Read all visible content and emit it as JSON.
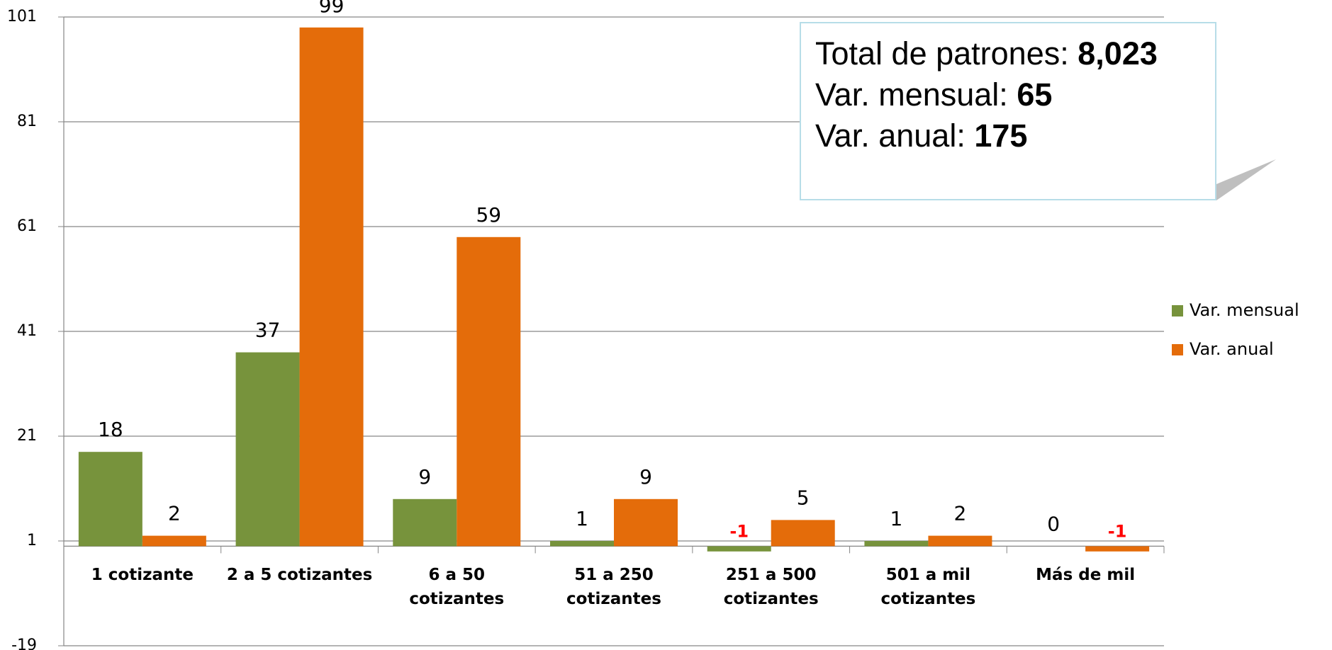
{
  "chart_data": {
    "type": "bar",
    "categories": [
      "1 cotizante",
      "2 a 5 cotizantes",
      "6 a 50 cotizantes",
      "51 a 250 cotizantes",
      "251 a 500 cotizantes",
      "501 a mil cotizantes",
      "Más de mil"
    ],
    "series": [
      {
        "name": "Var. mensual",
        "color": "#77933c",
        "values": [
          18,
          37,
          9,
          1,
          -1,
          1,
          0
        ]
      },
      {
        "name": "Var. anual",
        "color": "#e46c0a",
        "values": [
          2,
          99,
          59,
          9,
          5,
          2,
          -1
        ]
      }
    ],
    "ylim": [
      -19,
      101
    ],
    "yticks": [
      -19,
      1,
      21,
      41,
      61,
      81,
      101
    ],
    "grid": true,
    "legend": "right",
    "negative_label_color": "#ff0000",
    "annotation": [
      {
        "label": "Total de patrones:",
        "value": "8,023"
      },
      {
        "label": "Var. mensual:",
        "value": "65"
      },
      {
        "label": "Var. anual:",
        "value": "175"
      }
    ]
  }
}
